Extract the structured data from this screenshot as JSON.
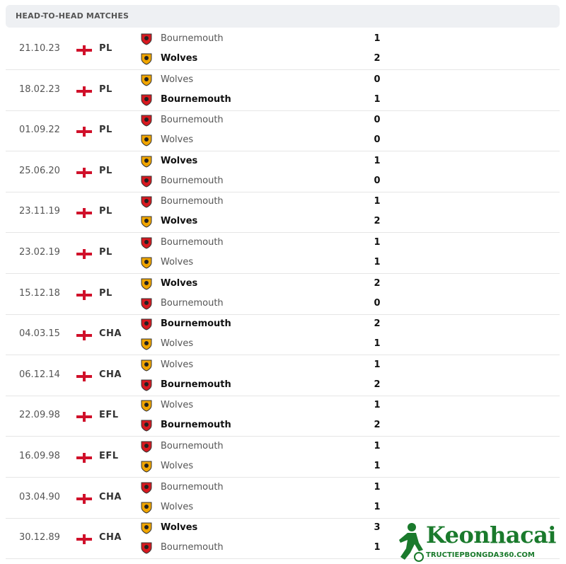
{
  "header": {
    "title": "HEAD-TO-HEAD MATCHES"
  },
  "matches": [
    {
      "date": "21.10.23",
      "competition": "PL",
      "home": {
        "name": "Bournemouth",
        "score": 1,
        "bold": false,
        "badge": "#d71920"
      },
      "away": {
        "name": "Wolves",
        "score": 2,
        "bold": true,
        "badge": "#f0a500"
      }
    },
    {
      "date": "18.02.23",
      "competition": "PL",
      "home": {
        "name": "Wolves",
        "score": 0,
        "bold": false,
        "badge": "#f0a500"
      },
      "away": {
        "name": "Bournemouth",
        "score": 1,
        "bold": true,
        "badge": "#d71920"
      }
    },
    {
      "date": "01.09.22",
      "competition": "PL",
      "home": {
        "name": "Bournemouth",
        "score": 0,
        "bold": false,
        "badge": "#d71920"
      },
      "away": {
        "name": "Wolves",
        "score": 0,
        "bold": false,
        "badge": "#f0a500"
      }
    },
    {
      "date": "25.06.20",
      "competition": "PL",
      "home": {
        "name": "Wolves",
        "score": 1,
        "bold": true,
        "badge": "#f0a500"
      },
      "away": {
        "name": "Bournemouth",
        "score": 0,
        "bold": false,
        "badge": "#d71920"
      }
    },
    {
      "date": "23.11.19",
      "competition": "PL",
      "home": {
        "name": "Bournemouth",
        "score": 1,
        "bold": false,
        "badge": "#d71920"
      },
      "away": {
        "name": "Wolves",
        "score": 2,
        "bold": true,
        "badge": "#f0a500"
      }
    },
    {
      "date": "23.02.19",
      "competition": "PL",
      "home": {
        "name": "Bournemouth",
        "score": 1,
        "bold": false,
        "badge": "#d71920"
      },
      "away": {
        "name": "Wolves",
        "score": 1,
        "bold": false,
        "badge": "#f0a500"
      }
    },
    {
      "date": "15.12.18",
      "competition": "PL",
      "home": {
        "name": "Wolves",
        "score": 2,
        "bold": true,
        "badge": "#f0a500"
      },
      "away": {
        "name": "Bournemouth",
        "score": 0,
        "bold": false,
        "badge": "#d71920"
      }
    },
    {
      "date": "04.03.15",
      "competition": "CHA",
      "home": {
        "name": "Bournemouth",
        "score": 2,
        "bold": true,
        "badge": "#d71920"
      },
      "away": {
        "name": "Wolves",
        "score": 1,
        "bold": false,
        "badge": "#f0a500"
      }
    },
    {
      "date": "06.12.14",
      "competition": "CHA",
      "home": {
        "name": "Wolves",
        "score": 1,
        "bold": false,
        "badge": "#f0a500"
      },
      "away": {
        "name": "Bournemouth",
        "score": 2,
        "bold": true,
        "badge": "#d71920"
      }
    },
    {
      "date": "22.09.98",
      "competition": "EFL",
      "home": {
        "name": "Wolves",
        "score": 1,
        "bold": false,
        "badge": "#f0a500"
      },
      "away": {
        "name": "Bournemouth",
        "score": 2,
        "bold": true,
        "badge": "#d71920"
      }
    },
    {
      "date": "16.09.98",
      "competition": "EFL",
      "home": {
        "name": "Bournemouth",
        "score": 1,
        "bold": false,
        "badge": "#d71920"
      },
      "away": {
        "name": "Wolves",
        "score": 1,
        "bold": false,
        "badge": "#f0a500"
      }
    },
    {
      "date": "03.04.90",
      "competition": "CHA",
      "home": {
        "name": "Bournemouth",
        "score": 1,
        "bold": false,
        "badge": "#d71920"
      },
      "away": {
        "name": "Wolves",
        "score": 1,
        "bold": false,
        "badge": "#f0a500"
      }
    },
    {
      "date": "30.12.89",
      "competition": "CHA",
      "home": {
        "name": "Wolves",
        "score": 3,
        "bold": true,
        "badge": "#f0a500"
      },
      "away": {
        "name": "Bournemouth",
        "score": 1,
        "bold": false,
        "badge": "#d71920"
      }
    }
  ],
  "watermark": {
    "brand": "Keonhacai",
    "site": "TRUCTIEPBONGDA360.COM"
  }
}
